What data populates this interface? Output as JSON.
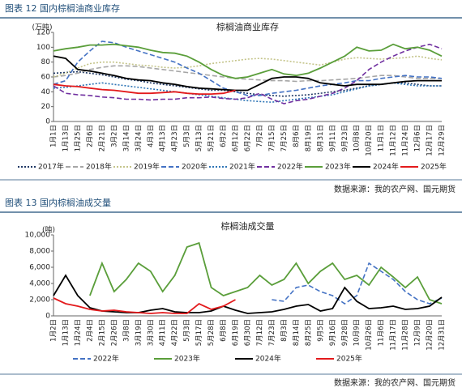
{
  "figures": [
    {
      "caption": "图表 12  国内棕榈油商业库存",
      "source": "数据来源：我的农产网、国元期货"
    },
    {
      "caption": "图表 13  国内棕榈油成交量",
      "source": "数据来源：我的农产网、国元期货"
    }
  ],
  "chart_data": [
    {
      "type": "line",
      "title": "棕榈油商业库存",
      "y_label": "(万吨)",
      "ylim": [
        0,
        120
      ],
      "yticks": [
        0,
        20,
        40,
        60,
        80,
        100,
        120
      ],
      "grid": false,
      "categories": [
        "1月1日",
        "1月13日",
        "1月25日",
        "2月6日",
        "2月21日",
        "3月2日",
        "3月14日",
        "3月24日",
        "4月3日",
        "4月13日",
        "4月23日",
        "5月3日",
        "5月13日",
        "5月21日",
        "6月2日",
        "6月12日",
        "6月22日",
        "7月2日",
        "7月15日",
        "7月25日",
        "8月6日",
        "8月19日",
        "8月31日",
        "9月11日",
        "9月23日",
        "10月8日",
        "10月20日",
        "11月1日",
        "11月12日",
        "11月24日",
        "12月6日",
        "12月17日",
        "12月29日"
      ],
      "series": [
        {
          "name": "2017年",
          "color": "#1f3864",
          "style": "dotted",
          "values": [
            65,
            66,
            67,
            65,
            63,
            60,
            57,
            55,
            52,
            50,
            48,
            46,
            44,
            42,
            42,
            40,
            38,
            36,
            35,
            34,
            35,
            36,
            38,
            40,
            42,
            45,
            48,
            50,
            52,
            52,
            50,
            48,
            48
          ]
        },
        {
          "name": "2018年",
          "color": "#a6a6a6",
          "style": "dashed",
          "values": [
            60,
            62,
            65,
            70,
            73,
            75,
            75,
            74,
            72,
            70,
            68,
            66,
            64,
            62,
            60,
            58,
            57,
            56,
            55,
            55,
            54,
            55,
            55,
            56,
            57,
            58,
            60,
            62,
            62,
            60,
            58,
            58,
            58
          ]
        },
        {
          "name": "2019年",
          "color": "#c4c48a",
          "style": "dotted",
          "values": [
            60,
            65,
            72,
            78,
            80,
            80,
            78,
            76,
            75,
            73,
            72,
            73,
            75,
            78,
            80,
            82,
            84,
            85,
            84,
            82,
            80,
            78,
            76,
            80,
            84,
            86,
            85,
            84,
            85,
            86,
            88,
            85,
            83
          ]
        },
        {
          "name": "2020年",
          "color": "#4472c4",
          "style": "dashed",
          "values": [
            50,
            55,
            80,
            95,
            108,
            106,
            100,
            95,
            90,
            85,
            80,
            72,
            65,
            55,
            45,
            40,
            35,
            35,
            38,
            40,
            42,
            45,
            48,
            50,
            52,
            55,
            55,
            58,
            60,
            62,
            60,
            60,
            58
          ]
        },
        {
          "name": "2021年",
          "color": "#2e75b6",
          "style": "dotted",
          "values": [
            45,
            46,
            48,
            50,
            52,
            50,
            48,
            46,
            44,
            42,
            40,
            38,
            36,
            34,
            32,
            30,
            28,
            27,
            26,
            28,
            30,
            32,
            34,
            36,
            40,
            44,
            48,
            50,
            52,
            50,
            48,
            48,
            48
          ]
        },
        {
          "name": "2022年",
          "color": "#7030a0",
          "style": "dashed",
          "values": [
            48,
            38,
            36,
            35,
            33,
            32,
            30,
            30,
            29,
            30,
            30,
            32,
            32,
            33,
            31,
            30,
            32,
            38,
            30,
            24,
            28,
            30,
            34,
            38,
            45,
            55,
            70,
            80,
            88,
            95,
            100,
            104,
            98
          ]
        },
        {
          "name": "2023年",
          "color": "#5a9e3a",
          "style": "solid",
          "values": [
            95,
            98,
            100,
            103,
            103,
            104,
            102,
            100,
            96,
            93,
            92,
            88,
            80,
            70,
            62,
            58,
            60,
            65,
            70,
            64,
            62,
            65,
            72,
            80,
            88,
            100,
            95,
            96,
            104,
            98,
            100,
            96,
            88
          ]
        },
        {
          "name": "2024年",
          "color": "#000000",
          "style": "solid",
          "values": [
            88,
            85,
            70,
            68,
            65,
            62,
            58,
            56,
            55,
            52,
            50,
            47,
            45,
            44,
            43,
            42,
            42,
            50,
            58,
            60,
            60,
            58,
            52,
            50,
            48,
            50,
            50,
            50,
            52,
            54,
            55,
            55,
            55
          ]
        },
        {
          "name": "2025年",
          "color": "#e31a1c",
          "style": "solid",
          "values": [
            50,
            48,
            47,
            45,
            43,
            42,
            40,
            38,
            38,
            39,
            40,
            38,
            37,
            37,
            38,
            42,
            null,
            null,
            null,
            null,
            null,
            null,
            null,
            null,
            null,
            null,
            null,
            null,
            null,
            null,
            null,
            null,
            null
          ]
        }
      ]
    },
    {
      "type": "line",
      "title": "棕榈油成交量",
      "y_label": "(吨)",
      "ylim": [
        0,
        10000
      ],
      "yticks": [
        0,
        {
          "value": 2000,
          "label": "2,000"
        },
        {
          "value": 4000,
          "label": "4,000"
        },
        {
          "value": 6000,
          "label": "6,000"
        },
        {
          "value": 8000,
          "label": "8,000"
        },
        {
          "value": 10000,
          "label": "10,000"
        }
      ],
      "grid": false,
      "categories": [
        "1月2日",
        "1月13日",
        "1月24日",
        "2月4日",
        "2月15日",
        "2月26日",
        "3月8日",
        "3月19日",
        "3月30日",
        "4月11日",
        "4月22日",
        "5月3日",
        "5月17日",
        "5月28日",
        "6月8日",
        "6月19日",
        "6月30日",
        "7月12日",
        "7月23日",
        "8月3日",
        "8月14日",
        "8月25日",
        "9月5日",
        "9月16日",
        "9月28日",
        "10月9日",
        "10月26日",
        "11月6日",
        "11月17日",
        "11月28日",
        "12月9日",
        "12月20日",
        "12月31日"
      ],
      "series": [
        {
          "name": "2022年",
          "color": "#4472c4",
          "style": "dashed",
          "values": [
            null,
            null,
            null,
            null,
            null,
            null,
            null,
            null,
            null,
            null,
            null,
            null,
            null,
            null,
            null,
            null,
            null,
            null,
            2000,
            1800,
            3500,
            3800,
            3000,
            2500,
            1500,
            2500,
            6500,
            5500,
            4500,
            3000,
            2000,
            1500,
            2200
          ]
        },
        {
          "name": "2023年",
          "color": "#5a9e3a",
          "style": "solid",
          "values": [
            null,
            null,
            null,
            2500,
            6500,
            3000,
            4500,
            6500,
            5500,
            3000,
            5000,
            8500,
            9000,
            3500,
            2500,
            3000,
            3500,
            5000,
            3800,
            4500,
            6500,
            4000,
            5500,
            6500,
            4500,
            5000,
            3800,
            6000,
            4800,
            3500,
            4800,
            2000,
            1500
          ]
        },
        {
          "name": "2024年",
          "color": "#000000",
          "style": "solid",
          "values": [
            2500,
            5000,
            2500,
            1000,
            600,
            500,
            400,
            400,
            700,
            900,
            500,
            400,
            400,
            600,
            1200,
            700,
            300,
            400,
            500,
            800,
            1200,
            1400,
            600,
            900,
            3500,
            1800,
            900,
            1000,
            1200,
            800,
            900,
            1200,
            2300
          ]
        },
        {
          "name": "2025年",
          "color": "#e31a1c",
          "style": "solid",
          "values": [
            2200,
            1500,
            1200,
            800,
            600,
            700,
            500,
            400,
            300,
            400,
            300,
            300,
            1500,
            800,
            1200,
            2000,
            null,
            null,
            null,
            null,
            null,
            null,
            null,
            null,
            null,
            null,
            null,
            null,
            null,
            null,
            null,
            null,
            null
          ]
        }
      ]
    }
  ]
}
